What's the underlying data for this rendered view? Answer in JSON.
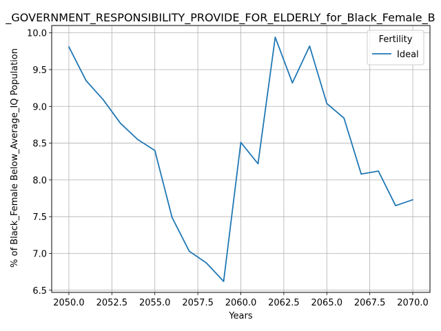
{
  "chart_data": {
    "type": "line",
    "title": "_GOVERNMENT_RESPONSIBILITY_PROVIDE_FOR_ELDERLY_for_Black_Female_B",
    "xlabel": "Years",
    "ylabel": "% of Black_Female Below_Average_IQ Population",
    "xlim": [
      2049.0,
      2071.0
    ],
    "ylim": [
      6.47,
      10.1
    ],
    "xticks": [
      2050.0,
      2052.5,
      2055.0,
      2057.5,
      2060.0,
      2062.5,
      2065.0,
      2067.5,
      2070.0
    ],
    "xtick_labels": [
      "2050.0",
      "2052.5",
      "2055.0",
      "2057.5",
      "2060.0",
      "2062.5",
      "2065.0",
      "2067.5",
      "2070.0"
    ],
    "yticks": [
      6.5,
      7.0,
      7.5,
      8.0,
      8.5,
      9.0,
      9.5,
      10.0
    ],
    "ytick_labels": [
      "6.5",
      "7.0",
      "7.5",
      "8.0",
      "8.5",
      "9.0",
      "9.5",
      "10.0"
    ],
    "grid": true,
    "legend": {
      "title": "Fertility",
      "placement": "top-right"
    },
    "series": [
      {
        "name": "Ideal",
        "color": "#1f77b4",
        "x": [
          2050,
          2051,
          2052,
          2053,
          2054,
          2055,
          2056,
          2057,
          2058,
          2059,
          2060,
          2061,
          2062,
          2063,
          2064,
          2065,
          2066,
          2067,
          2068,
          2069,
          2070
        ],
        "y": [
          9.81,
          9.35,
          9.09,
          8.77,
          8.55,
          8.4,
          7.49,
          7.03,
          6.87,
          6.62,
          8.51,
          8.22,
          9.94,
          9.32,
          9.82,
          9.04,
          8.84,
          8.08,
          8.12,
          7.65,
          7.73
        ]
      }
    ]
  }
}
